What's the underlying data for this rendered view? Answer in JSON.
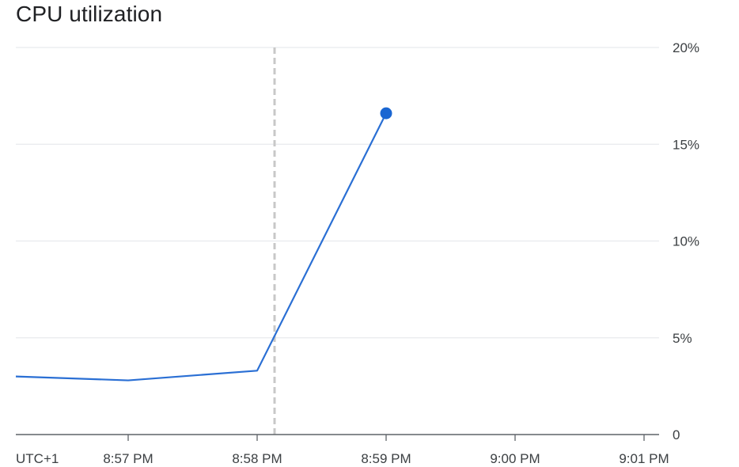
{
  "chart_data": {
    "type": "line",
    "title": "CPU utilization",
    "timezone_label": "UTC+1",
    "x_tick_labels": [
      "8:57 PM",
      "8:58 PM",
      "8:59 PM",
      "9:00 PM",
      "9:01 PM"
    ],
    "y_tick_labels": [
      "0",
      "5%",
      "10%",
      "15%",
      "20%"
    ],
    "y_ticks": [
      0,
      5,
      10,
      15,
      20
    ],
    "ylim": [
      0,
      20
    ],
    "xlim_minutes_past_8pm": [
      56.0,
      61.0
    ],
    "y_axis_side": "right",
    "grid": true,
    "series": [
      {
        "color": "#2a6fd4",
        "points": [
          {
            "x": "8:56 PM",
            "y": 3.0
          },
          {
            "x": "8:57 PM",
            "y": 2.8
          },
          {
            "x": "8:58 PM",
            "y": 3.3
          },
          {
            "x": "8:59 PM",
            "y": 16.6
          }
        ]
      }
    ],
    "cursor_line": {
      "x": "8:58 PM",
      "color": "#c8c8c8",
      "style": "dashed"
    },
    "colors": {
      "grid": "#e8eaed",
      "axis": "#5f6368",
      "marker": "#1a66d2"
    }
  }
}
